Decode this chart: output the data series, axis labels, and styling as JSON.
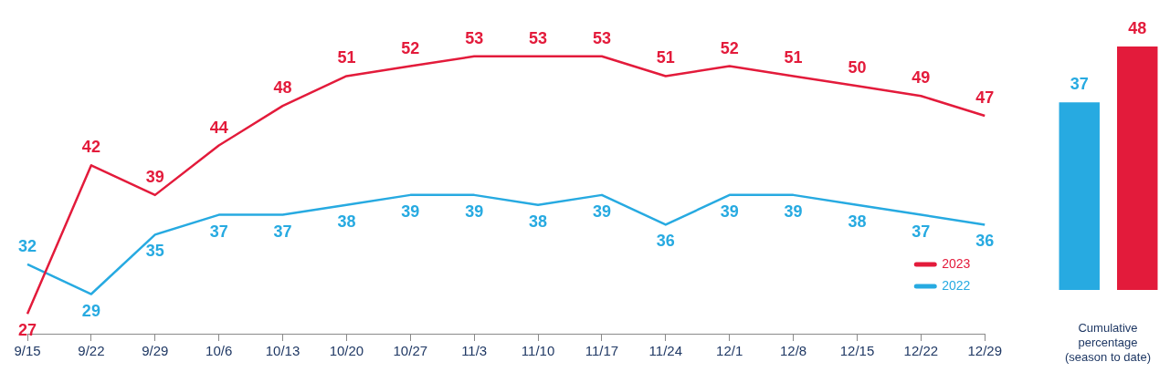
{
  "chart_data": [
    {
      "type": "line",
      "categories": [
        "9/15",
        "9/22",
        "9/29",
        "10/6",
        "10/13",
        "10/20",
        "10/27",
        "11/3",
        "11/10",
        "11/17",
        "11/24",
        "12/1",
        "12/8",
        "12/15",
        "12/22",
        "12/29"
      ],
      "series": [
        {
          "name": "2023",
          "color": "#e31b3b",
          "values": [
            27,
            42,
            39,
            44,
            48,
            51,
            52,
            53,
            53,
            53,
            51,
            52,
            51,
            50,
            49,
            47
          ]
        },
        {
          "name": "2022",
          "color": "#27aae1",
          "values": [
            32,
            29,
            35,
            37,
            37,
            38,
            39,
            39,
            38,
            39,
            36,
            39,
            39,
            38,
            37,
            36
          ]
        }
      ],
      "data_labels": true,
      "legend": "bottom right",
      "grid": false,
      "marker": "none",
      "line_style": "solid"
    },
    {
      "type": "bar",
      "categories": [
        null,
        null
      ],
      "values": [
        37,
        48
      ],
      "colors": [
        "#27aae1",
        "#e31b3b"
      ],
      "xlabel": "Cumulative percentage (season to date)",
      "data_labels": true,
      "grid": false
    }
  ]
}
